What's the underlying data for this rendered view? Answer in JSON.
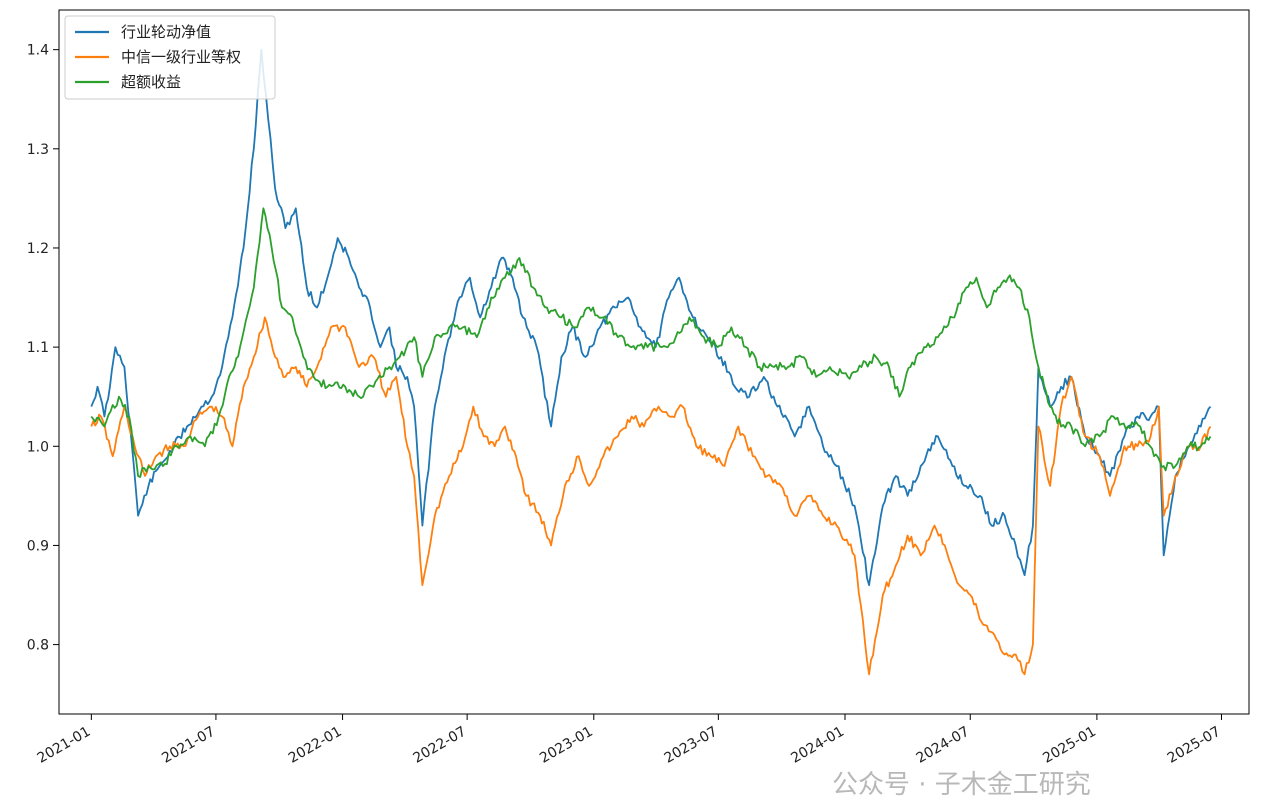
{
  "chart_data": {
    "type": "line",
    "title": "",
    "xlabel": "",
    "ylabel": "",
    "x_ticks": [
      "2021-01",
      "2021-07",
      "2022-01",
      "2022-07",
      "2023-01",
      "2023-07",
      "2024-01",
      "2024-07",
      "2025-01",
      "2025-07"
    ],
    "y_ticks": [
      "0.8",
      "0.9",
      "1.0",
      "1.1",
      "1.2",
      "1.3",
      "1.4"
    ],
    "ylim": [
      0.73,
      1.44
    ],
    "xlim": [
      "2020-11-15",
      "2025-08-10"
    ],
    "grid": false,
    "legend_position": "top-left",
    "series": [
      {
        "name": "行业轮动净值",
        "color": "#1f77b4",
        "points": [
          [
            "2021-01-01",
            1.04
          ],
          [
            "2021-01-10",
            1.06
          ],
          [
            "2021-01-20",
            1.03
          ],
          [
            "2021-01-28",
            1.06
          ],
          [
            "2021-02-05",
            1.1
          ],
          [
            "2021-02-18",
            1.08
          ],
          [
            "2021-03-01",
            1.0
          ],
          [
            "2021-03-10",
            0.93
          ],
          [
            "2021-03-25",
            0.96
          ],
          [
            "2021-04-10",
            0.98
          ],
          [
            "2021-05-01",
            1.0
          ],
          [
            "2021-05-20",
            1.02
          ],
          [
            "2021-06-10",
            1.04
          ],
          [
            "2021-06-25",
            1.05
          ],
          [
            "2021-07-10",
            1.08
          ],
          [
            "2021-07-25",
            1.13
          ],
          [
            "2021-08-10",
            1.2
          ],
          [
            "2021-08-25",
            1.3
          ],
          [
            "2021-09-05",
            1.4
          ],
          [
            "2021-09-15",
            1.33
          ],
          [
            "2021-09-25",
            1.26
          ],
          [
            "2021-10-10",
            1.22
          ],
          [
            "2021-10-25",
            1.24
          ],
          [
            "2021-11-10",
            1.16
          ],
          [
            "2021-11-25",
            1.14
          ],
          [
            "2021-12-10",
            1.17
          ],
          [
            "2021-12-25",
            1.21
          ],
          [
            "2022-01-10",
            1.19
          ],
          [
            "2022-01-25",
            1.16
          ],
          [
            "2022-02-10",
            1.14
          ],
          [
            "2022-02-25",
            1.1
          ],
          [
            "2022-03-10",
            1.12
          ],
          [
            "2022-03-20",
            1.08
          ],
          [
            "2022-04-05",
            1.07
          ],
          [
            "2022-04-15",
            1.04
          ],
          [
            "2022-04-27",
            0.92
          ],
          [
            "2022-05-15",
            1.04
          ],
          [
            "2022-06-01",
            1.1
          ],
          [
            "2022-06-20",
            1.15
          ],
          [
            "2022-07-05",
            1.17
          ],
          [
            "2022-07-20",
            1.13
          ],
          [
            "2022-08-05",
            1.16
          ],
          [
            "2022-08-20",
            1.19
          ],
          [
            "2022-09-05",
            1.17
          ],
          [
            "2022-09-20",
            1.13
          ],
          [
            "2022-10-10",
            1.1
          ],
          [
            "2022-10-31",
            1.02
          ],
          [
            "2022-11-15",
            1.09
          ],
          [
            "2022-12-01",
            1.12
          ],
          [
            "2022-12-20",
            1.09
          ],
          [
            "2023-01-10",
            1.12
          ],
          [
            "2023-02-01",
            1.14
          ],
          [
            "2023-02-20",
            1.15
          ],
          [
            "2023-03-10",
            1.12
          ],
          [
            "2023-04-01",
            1.1
          ],
          [
            "2023-04-20",
            1.15
          ],
          [
            "2023-05-05",
            1.17
          ],
          [
            "2023-05-25",
            1.13
          ],
          [
            "2023-06-15",
            1.11
          ],
          [
            "2023-07-05",
            1.09
          ],
          [
            "2023-07-25",
            1.06
          ],
          [
            "2023-08-15",
            1.05
          ],
          [
            "2023-09-05",
            1.07
          ],
          [
            "2023-09-25",
            1.04
          ],
          [
            "2023-10-20",
            1.01
          ],
          [
            "2023-11-10",
            1.04
          ],
          [
            "2023-11-30",
            1.0
          ],
          [
            "2023-12-20",
            0.98
          ],
          [
            "2024-01-15",
            0.94
          ],
          [
            "2024-02-05",
            0.86
          ],
          [
            "2024-02-25",
            0.94
          ],
          [
            "2024-03-15",
            0.97
          ],
          [
            "2024-04-01",
            0.95
          ],
          [
            "2024-04-20",
            0.98
          ],
          [
            "2024-05-15",
            1.01
          ],
          [
            "2024-06-05",
            0.98
          ],
          [
            "2024-06-25",
            0.96
          ],
          [
            "2024-07-15",
            0.95
          ],
          [
            "2024-08-01",
            0.92
          ],
          [
            "2024-08-20",
            0.93
          ],
          [
            "2024-09-05",
            0.9
          ],
          [
            "2024-09-18",
            0.87
          ],
          [
            "2024-09-30",
            0.92
          ],
          [
            "2024-10-08",
            1.08
          ],
          [
            "2024-10-25",
            1.04
          ],
          [
            "2024-11-10",
            1.06
          ],
          [
            "2024-11-25",
            1.07
          ],
          [
            "2024-12-15",
            1.01
          ],
          [
            "2025-01-05",
            0.99
          ],
          [
            "2025-01-20",
            0.97
          ],
          [
            "2025-02-10",
            1.01
          ],
          [
            "2025-03-01",
            1.03
          ],
          [
            "2025-03-20",
            1.03
          ],
          [
            "2025-04-01",
            1.04
          ],
          [
            "2025-04-08",
            0.89
          ],
          [
            "2025-04-25",
            0.97
          ],
          [
            "2025-05-15",
            1.0
          ],
          [
            "2025-06-01",
            1.02
          ],
          [
            "2025-06-15",
            1.04
          ]
        ]
      },
      {
        "name": "中信一级行业等权",
        "color": "#ff7f0e",
        "points": [
          [
            "2021-01-01",
            1.02
          ],
          [
            "2021-01-15",
            1.03
          ],
          [
            "2021-02-01",
            0.99
          ],
          [
            "2021-02-18",
            1.04
          ],
          [
            "2021-03-05",
            1.0
          ],
          [
            "2021-03-20",
            0.97
          ],
          [
            "2021-04-05",
            0.99
          ],
          [
            "2021-04-25",
            1.0
          ],
          [
            "2021-05-15",
            1.0
          ],
          [
            "2021-06-05",
            1.03
          ],
          [
            "2021-06-25",
            1.04
          ],
          [
            "2021-07-10",
            1.03
          ],
          [
            "2021-07-25",
            1.0
          ],
          [
            "2021-08-10",
            1.06
          ],
          [
            "2021-08-25",
            1.09
          ],
          [
            "2021-09-10",
            1.13
          ],
          [
            "2021-09-25",
            1.09
          ],
          [
            "2021-10-10",
            1.07
          ],
          [
            "2021-10-25",
            1.08
          ],
          [
            "2021-11-10",
            1.06
          ],
          [
            "2021-11-25",
            1.08
          ],
          [
            "2021-12-15",
            1.12
          ],
          [
            "2022-01-05",
            1.12
          ],
          [
            "2022-01-25",
            1.08
          ],
          [
            "2022-02-15",
            1.09
          ],
          [
            "2022-03-05",
            1.05
          ],
          [
            "2022-03-20",
            1.07
          ],
          [
            "2022-04-05",
            1.0
          ],
          [
            "2022-04-15",
            0.97
          ],
          [
            "2022-04-27",
            0.86
          ],
          [
            "2022-05-15",
            0.93
          ],
          [
            "2022-06-05",
            0.97
          ],
          [
            "2022-06-25",
            1.0
          ],
          [
            "2022-07-10",
            1.04
          ],
          [
            "2022-07-25",
            1.01
          ],
          [
            "2022-08-10",
            1.0
          ],
          [
            "2022-08-25",
            1.02
          ],
          [
            "2022-09-10",
            0.99
          ],
          [
            "2022-09-25",
            0.95
          ],
          [
            "2022-10-15",
            0.93
          ],
          [
            "2022-10-31",
            0.9
          ],
          [
            "2022-11-20",
            0.96
          ],
          [
            "2022-12-10",
            0.99
          ],
          [
            "2022-12-25",
            0.96
          ],
          [
            "2023-01-15",
            0.99
          ],
          [
            "2023-02-05",
            1.01
          ],
          [
            "2023-02-25",
            1.03
          ],
          [
            "2023-03-15",
            1.02
          ],
          [
            "2023-04-05",
            1.04
          ],
          [
            "2023-04-25",
            1.03
          ],
          [
            "2023-05-10",
            1.04
          ],
          [
            "2023-05-30",
            1.0
          ],
          [
            "2023-06-20",
            0.99
          ],
          [
            "2023-07-10",
            0.98
          ],
          [
            "2023-07-30",
            1.02
          ],
          [
            "2023-08-20",
            0.99
          ],
          [
            "2023-09-10",
            0.97
          ],
          [
            "2023-09-30",
            0.96
          ],
          [
            "2023-10-20",
            0.93
          ],
          [
            "2023-11-10",
            0.95
          ],
          [
            "2023-11-30",
            0.93
          ],
          [
            "2023-12-20",
            0.92
          ],
          [
            "2024-01-15",
            0.89
          ],
          [
            "2024-02-05",
            0.77
          ],
          [
            "2024-02-25",
            0.85
          ],
          [
            "2024-03-15",
            0.88
          ],
          [
            "2024-04-01",
            0.91
          ],
          [
            "2024-04-20",
            0.89
          ],
          [
            "2024-05-10",
            0.92
          ],
          [
            "2024-05-25",
            0.9
          ],
          [
            "2024-06-15",
            0.86
          ],
          [
            "2024-07-01",
            0.85
          ],
          [
            "2024-07-20",
            0.82
          ],
          [
            "2024-08-05",
            0.81
          ],
          [
            "2024-08-20",
            0.79
          ],
          [
            "2024-09-05",
            0.79
          ],
          [
            "2024-09-18",
            0.77
          ],
          [
            "2024-09-30",
            0.8
          ],
          [
            "2024-10-08",
            1.02
          ],
          [
            "2024-10-25",
            0.96
          ],
          [
            "2024-11-10",
            1.04
          ],
          [
            "2024-11-25",
            1.07
          ],
          [
            "2024-12-15",
            1.01
          ],
          [
            "2025-01-05",
            0.99
          ],
          [
            "2025-01-20",
            0.95
          ],
          [
            "2025-02-10",
            1.0
          ],
          [
            "2025-03-01",
            1.0
          ],
          [
            "2025-03-20",
            1.01
          ],
          [
            "2025-04-01",
            1.04
          ],
          [
            "2025-04-08",
            0.93
          ],
          [
            "2025-04-25",
            0.97
          ],
          [
            "2025-05-15",
            1.0
          ],
          [
            "2025-06-01",
            1.0
          ],
          [
            "2025-06-15",
            1.02
          ]
        ]
      },
      {
        "name": "超额收益",
        "color": "#2ca02c",
        "points": [
          [
            "2021-01-01",
            1.03
          ],
          [
            "2021-01-20",
            1.02
          ],
          [
            "2021-02-10",
            1.05
          ],
          [
            "2021-02-25",
            1.03
          ],
          [
            "2021-03-10",
            0.97
          ],
          [
            "2021-03-25",
            0.98
          ],
          [
            "2021-04-15",
            0.98
          ],
          [
            "2021-05-05",
            1.0
          ],
          [
            "2021-05-25",
            1.01
          ],
          [
            "2021-06-15",
            1.0
          ],
          [
            "2021-07-05",
            1.03
          ],
          [
            "2021-07-20",
            1.07
          ],
          [
            "2021-08-05",
            1.1
          ],
          [
            "2021-08-25",
            1.16
          ],
          [
            "2021-09-08",
            1.24
          ],
          [
            "2021-09-20",
            1.2
          ],
          [
            "2021-10-05",
            1.14
          ],
          [
            "2021-10-20",
            1.13
          ],
          [
            "2021-11-05",
            1.09
          ],
          [
            "2021-11-20",
            1.07
          ],
          [
            "2021-12-10",
            1.06
          ],
          [
            "2022-01-05",
            1.06
          ],
          [
            "2022-01-25",
            1.05
          ],
          [
            "2022-02-15",
            1.06
          ],
          [
            "2022-03-10",
            1.08
          ],
          [
            "2022-03-25",
            1.09
          ],
          [
            "2022-04-15",
            1.11
          ],
          [
            "2022-04-27",
            1.07
          ],
          [
            "2022-05-15",
            1.11
          ],
          [
            "2022-06-05",
            1.12
          ],
          [
            "2022-06-25",
            1.12
          ],
          [
            "2022-07-15",
            1.11
          ],
          [
            "2022-08-05",
            1.15
          ],
          [
            "2022-08-25",
            1.17
          ],
          [
            "2022-09-15",
            1.19
          ],
          [
            "2022-10-05",
            1.16
          ],
          [
            "2022-10-25",
            1.14
          ],
          [
            "2022-11-15",
            1.13
          ],
          [
            "2022-12-05",
            1.12
          ],
          [
            "2022-12-25",
            1.14
          ],
          [
            "2023-01-15",
            1.13
          ],
          [
            "2023-02-05",
            1.11
          ],
          [
            "2023-02-25",
            1.1
          ],
          [
            "2023-03-20",
            1.1
          ],
          [
            "2023-04-10",
            1.1
          ],
          [
            "2023-04-30",
            1.11
          ],
          [
            "2023-05-20",
            1.13
          ],
          [
            "2023-06-10",
            1.11
          ],
          [
            "2023-06-30",
            1.1
          ],
          [
            "2023-07-20",
            1.12
          ],
          [
            "2023-08-10",
            1.1
          ],
          [
            "2023-08-30",
            1.08
          ],
          [
            "2023-09-20",
            1.08
          ],
          [
            "2023-10-10",
            1.08
          ],
          [
            "2023-10-30",
            1.09
          ],
          [
            "2023-11-20",
            1.07
          ],
          [
            "2023-12-10",
            1.08
          ],
          [
            "2024-01-05",
            1.07
          ],
          [
            "2024-01-25",
            1.08
          ],
          [
            "2024-02-15",
            1.09
          ],
          [
            "2024-03-05",
            1.08
          ],
          [
            "2024-03-20",
            1.05
          ],
          [
            "2024-04-05",
            1.08
          ],
          [
            "2024-04-25",
            1.1
          ],
          [
            "2024-05-15",
            1.11
          ],
          [
            "2024-06-05",
            1.13
          ],
          [
            "2024-06-25",
            1.16
          ],
          [
            "2024-07-10",
            1.17
          ],
          [
            "2024-07-25",
            1.14
          ],
          [
            "2024-08-10",
            1.16
          ],
          [
            "2024-08-25",
            1.17
          ],
          [
            "2024-09-10",
            1.16
          ],
          [
            "2024-09-25",
            1.13
          ],
          [
            "2024-10-08",
            1.08
          ],
          [
            "2024-10-25",
            1.04
          ],
          [
            "2024-11-10",
            1.02
          ],
          [
            "2024-11-25",
            1.02
          ],
          [
            "2024-12-15",
            1.0
          ],
          [
            "2025-01-05",
            1.01
          ],
          [
            "2025-01-25",
            1.03
          ],
          [
            "2025-02-15",
            1.02
          ],
          [
            "2025-03-05",
            1.02
          ],
          [
            "2025-03-25",
            0.99
          ],
          [
            "2025-04-08",
            0.98
          ],
          [
            "2025-04-25",
            0.98
          ],
          [
            "2025-05-15",
            1.0
          ],
          [
            "2025-06-01",
            1.0
          ],
          [
            "2025-06-15",
            1.01
          ]
        ]
      }
    ]
  },
  "watermark": "公众号 · 子木金工研究"
}
